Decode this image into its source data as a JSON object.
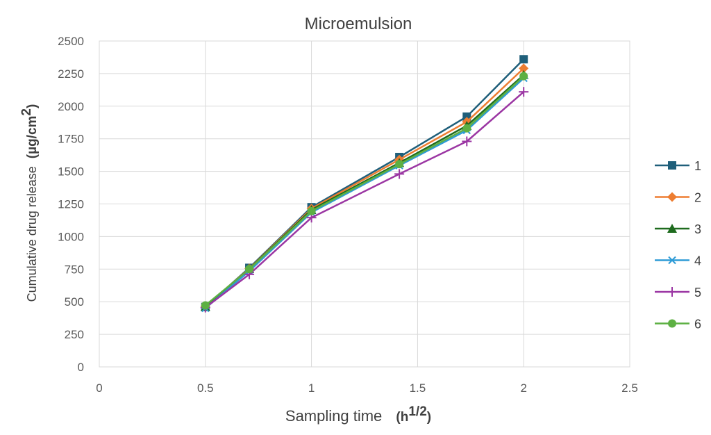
{
  "chart_data": {
    "type": "line",
    "title": "Microemulsion",
    "xlabel": "Sampling time",
    "xlabel_unit": "h",
    "xlabel_unit_exp": "1/2",
    "ylabel": "Cumulative drug release",
    "ylabel_unit": "µg/cm",
    "ylabel_unit_exp": "2",
    "xlim": [
      0,
      2.5
    ],
    "ylim": [
      0,
      2500
    ],
    "x_ticks": [
      "0",
      "0.5",
      "1",
      "1.5",
      "2",
      "2.5"
    ],
    "y_ticks": [
      "0",
      "250",
      "500",
      "750",
      "1000",
      "1250",
      "1500",
      "1750",
      "2000",
      "2250",
      "2500"
    ],
    "grid": true,
    "legend_position": "right",
    "x": [
      0.5,
      0.707,
      1.0,
      1.414,
      1.732,
      2.0
    ],
    "series": [
      {
        "name": "1",
        "color": "#1f5f7a",
        "marker": "square",
        "values": [
          460,
          760,
          1225,
          1610,
          1920,
          2360
        ]
      },
      {
        "name": "2",
        "color": "#ed7d31",
        "marker": "diamond",
        "values": [
          465,
          755,
          1215,
          1590,
          1880,
          2290
        ]
      },
      {
        "name": "3",
        "color": "#1e6b1e",
        "marker": "triangle",
        "values": [
          462,
          752,
          1205,
          1565,
          1850,
          2240
        ]
      },
      {
        "name": "4",
        "color": "#2e9bd6",
        "marker": "asterisk",
        "values": [
          450,
          735,
          1185,
          1545,
          1815,
          2215
        ]
      },
      {
        "name": "5",
        "color": "#9b36a3",
        "marker": "plus",
        "values": [
          455,
          710,
          1145,
          1480,
          1730,
          2110
        ]
      },
      {
        "name": "6",
        "color": "#5db043",
        "marker": "circle",
        "values": [
          472,
          750,
          1195,
          1555,
          1830,
          2230
        ]
      }
    ]
  }
}
